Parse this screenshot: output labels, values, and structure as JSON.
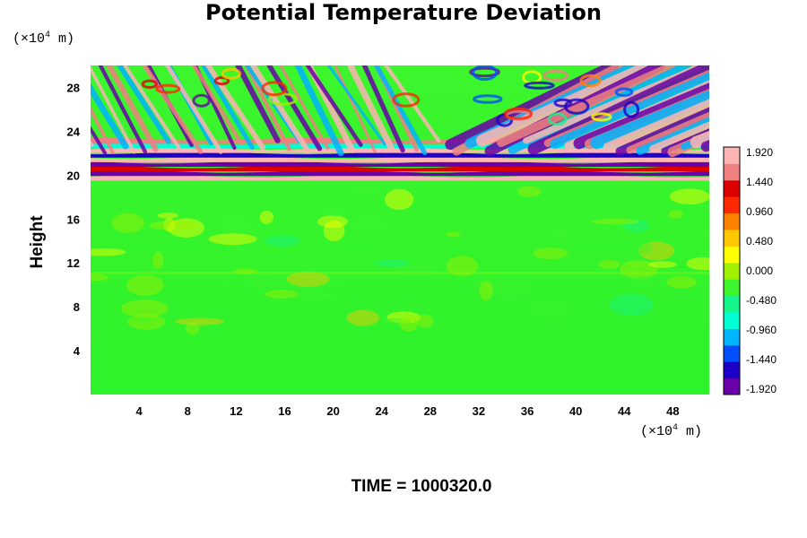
{
  "chart_data": {
    "type": "heatmap",
    "title": "Potential Temperature Deviation",
    "ylabel": "Height",
    "x_unit": {
      "prefix": "(×10",
      "exp": "4",
      "suffix": " m)"
    },
    "y_unit": {
      "prefix": "(×10",
      "exp": "4",
      "suffix": " m)"
    },
    "xlim": [
      0,
      51
    ],
    "ylim": [
      0,
      30
    ],
    "x_ticks": [
      4,
      8,
      12,
      16,
      20,
      24,
      28,
      32,
      36,
      40,
      44,
      48
    ],
    "y_ticks": [
      4,
      8,
      12,
      16,
      20,
      24,
      28
    ],
    "colorbar": {
      "min": -1.92,
      "max": 1.92,
      "tick_values": [
        1.92,
        1.44,
        0.96,
        0.48,
        0.0,
        -0.48,
        -0.96,
        -1.44,
        -1.92
      ],
      "tick_labels": [
        "1.920",
        "1.440",
        "0.960",
        "0.480",
        "0.000",
        "-0.480",
        "-0.960",
        "-1.440",
        "-1.920"
      ],
      "colors": [
        "#6a00a8",
        "#1c00c8",
        "#0050ff",
        "#00b4ff",
        "#00ffd2",
        "#14f58c",
        "#3cf52d",
        "#a0f000",
        "#ffff00",
        "#ffc800",
        "#ff8200",
        "#ff2800",
        "#dc0000",
        "#f08080",
        "#ffb4b4"
      ]
    },
    "annotation": "TIME = 1000320.0"
  }
}
